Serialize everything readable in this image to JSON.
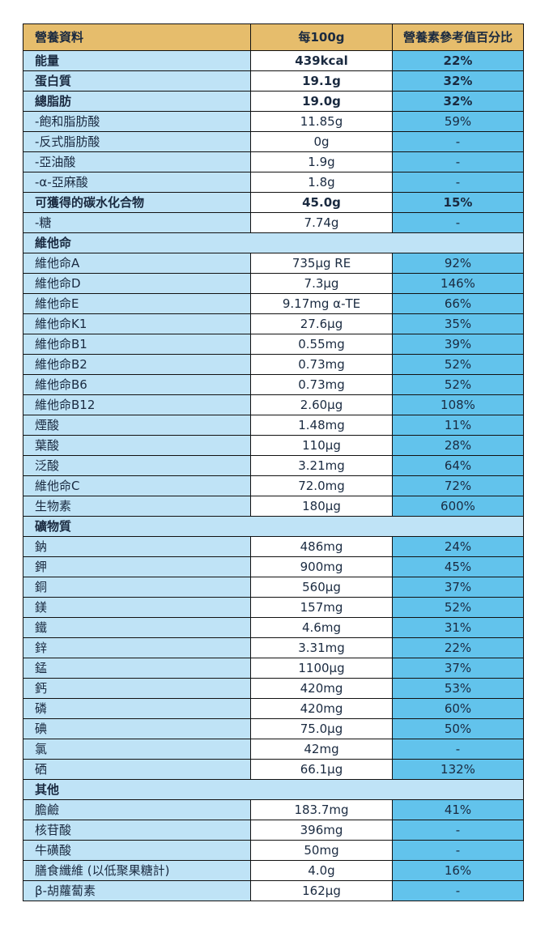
{
  "table": {
    "header": [
      "營養資料",
      "每100g",
      "營養素參考值百分比"
    ],
    "rows": [
      [
        "能量",
        "439kcal",
        "22%"
      ],
      [
        "蛋白質",
        "19.1g",
        "32%"
      ],
      [
        "總脂肪",
        "19.0g",
        "32%"
      ],
      [
        "-飽和脂肪酸",
        "11.85g",
        "59%"
      ],
      [
        "-反式脂肪酸",
        "0g",
        "-"
      ],
      [
        "-亞油酸",
        "1.9g",
        "-"
      ],
      [
        "-α-亞麻酸",
        "1.8g",
        "-"
      ],
      [
        "可獲得的碳水化合物",
        "45.0g",
        "15%"
      ],
      [
        "-糖",
        "7.74g",
        "-"
      ],
      [
        "維他命"
      ],
      [
        "維他命A",
        "735µg RE",
        "92%"
      ],
      [
        "維他命D",
        "7.3µg",
        "146%"
      ],
      [
        "維他命E",
        "9.17mg α-TE",
        "66%"
      ],
      [
        "維他命K1",
        "27.6µg",
        "35%"
      ],
      [
        "維他命B1",
        "0.55mg",
        "39%"
      ],
      [
        "維他命B2",
        "0.73mg",
        "52%"
      ],
      [
        "維他命B6",
        "0.73mg",
        "52%"
      ],
      [
        "維他命B12",
        "2.60µg",
        "108%"
      ],
      [
        "煙酸",
        "1.48mg",
        "11%"
      ],
      [
        "葉酸",
        "110µg",
        "28%"
      ],
      [
        "泛酸",
        "3.21mg",
        "64%"
      ],
      [
        "維他命C",
        "72.0mg",
        "72%"
      ],
      [
        "生物素",
        "180µg",
        "600%"
      ],
      [
        "礦物質"
      ],
      [
        "鈉",
        "486mg",
        "24%"
      ],
      [
        "鉀",
        "900mg",
        "45%"
      ],
      [
        "銅",
        "560µg",
        "37%"
      ],
      [
        "鎂",
        "157mg",
        "52%"
      ],
      [
        "鐵",
        "4.6mg",
        "31%"
      ],
      [
        "鋅",
        "3.31mg",
        "22%"
      ],
      [
        "錳",
        "1100µg",
        "37%"
      ],
      [
        "鈣",
        "420mg",
        "53%"
      ],
      [
        "磷",
        "420mg",
        "60%"
      ],
      [
        "碘",
        "75.0µg",
        "50%"
      ],
      [
        "氯",
        "42mg",
        "-"
      ],
      [
        "硒",
        "66.1µg",
        "132%"
      ],
      [
        "其他"
      ],
      [
        "膽鹼",
        "183.7mg",
        "41%"
      ],
      [
        "核苷酸",
        "396mg",
        "-"
      ],
      [
        "牛磺酸",
        "50mg",
        "-"
      ],
      [
        "膳食纖維 (以低聚果糖計)",
        "4.0g",
        "16%"
      ],
      [
        "β-胡蘿蔔素",
        "162µg",
        "-"
      ]
    ]
  }
}
